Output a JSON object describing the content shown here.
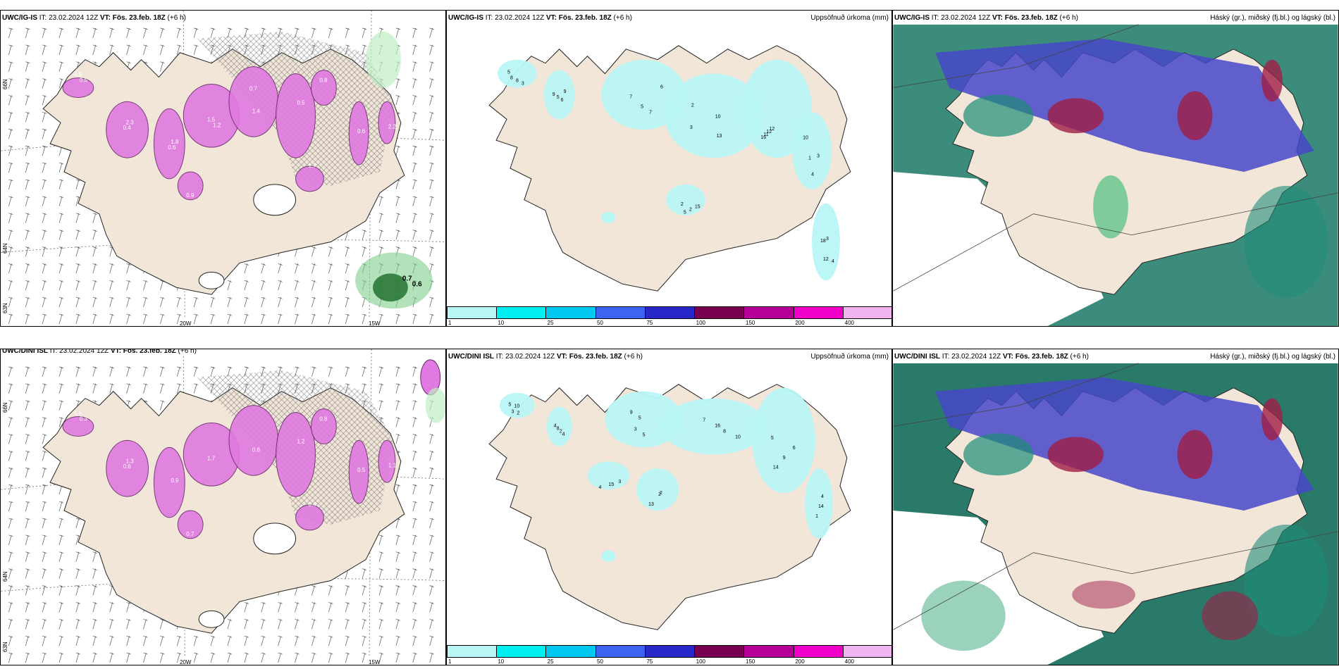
{
  "rows": [
    {
      "id": "uwc-ig-is",
      "left": {
        "title_model": "UWC/IG-IS",
        "title_it": " IT: 23.02.2024 12Z ",
        "title_vt": "VT: Fös. 23.feb. 18Z",
        "title_lead": " (+6 h)"
      },
      "middle": {
        "title_model": "UWC/IG-IS",
        "title_it": " IT: 23.02.2024 12Z ",
        "title_vt": "VT: Fös. 23.feb. 18Z",
        "title_lead": " (+6 h)",
        "right_title": "Uppsöfnuð úrkoma (mm)"
      },
      "right": {
        "title_model": "UWC/IG-IS",
        "title_it": " IT: 23.02.2024 12Z ",
        "title_vt": "VT: Fös. 23.feb. 18Z",
        "title_lead": " (+6 h)",
        "right_title": "Háský (gr.), miðský (fj.bl.) og lágský (bl.)"
      }
    },
    {
      "id": "uwc-dini-isl",
      "left": {
        "title_model": "UWC/DINI ISL",
        "title_it": " IT: 23.02.2024 12Z ",
        "title_vt": "VT: Fös. 23.feb. 18Z",
        "title_lead": " (+6 h)"
      },
      "middle": {
        "title_model": "UWC/DINI ISL",
        "title_it": " IT: 23.02.2024 12Z ",
        "title_vt": "VT: Fös. 23.feb. 18Z",
        "title_lead": " (+6 h)",
        "right_title": "Uppsöfnuð úrkoma (mm)"
      },
      "right": {
        "title_model": "UWC/DINI ISL",
        "title_it": " IT: 23.02.2024 12Z ",
        "title_vt": "VT: Fös. 23.feb. 18Z",
        "title_lead": " (+6 h)",
        "right_title": "Háský (gr.), miðský (fj.bl.) og lágský (bl.)"
      }
    }
  ],
  "axes": {
    "lon_20": "20W",
    "lon_15": "15W",
    "lat_66": "66N",
    "lat_64": "64N",
    "lat_63": "63N"
  },
  "colorbar": {
    "labels": [
      "1",
      "10",
      "25",
      "50",
      "75",
      "100",
      "150",
      "200",
      "400"
    ],
    "colors": [
      "#b8f5f5",
      "#00f0f0",
      "#00c8f0",
      "#3c64f0",
      "#2828c8",
      "#780050",
      "#b40096",
      "#f000c8",
      "#f0b4f0"
    ]
  },
  "colors": {
    "land": "#f2e6d9",
    "snow": "#e07ae0",
    "precip_light": "#b8f5f5",
    "cloud_high": "#1e8c78",
    "cloud_mid": "#4646c8",
    "cloud_low": "#a01e46"
  },
  "precip_labels_top": [
    "5",
    "6",
    "5",
    "13",
    "16",
    "1",
    "4",
    "2",
    "3",
    "5",
    "7",
    "2",
    "11",
    "10",
    "18",
    "15",
    "8",
    "9",
    "6",
    "10",
    "12",
    "3",
    "12",
    "2",
    "8",
    "9",
    "7",
    "3",
    "12",
    "4",
    "3",
    "5"
  ],
  "precip_labels_bottom": [
    "5",
    "4",
    "5",
    "16",
    "14",
    "1",
    "2",
    "4",
    "3",
    "2",
    "5",
    "10",
    "9",
    "14",
    "13",
    "15",
    "10",
    "8",
    "3",
    "7",
    "6",
    "4",
    "2",
    "3",
    "2",
    "4",
    "9",
    "8",
    "5"
  ],
  "snow_labels_top": [
    "0.9",
    "2.3",
    "1.8",
    "1.5",
    "1.4",
    "0.5",
    "0.8",
    "0.6",
    "2.2",
    "0.9",
    "1.7",
    "0.5",
    "0.4",
    "0.6",
    "1.2",
    "0.7"
  ],
  "snow_labels_bottom": [
    "1.5",
    "1.3",
    "0.9",
    "1.7",
    "0.6",
    "1.2",
    "0.8",
    "0.5",
    "1.1",
    "0.7",
    "0.4",
    "0.3",
    "0.6"
  ],
  "green_labels": [
    "0.7",
    "0.6"
  ]
}
